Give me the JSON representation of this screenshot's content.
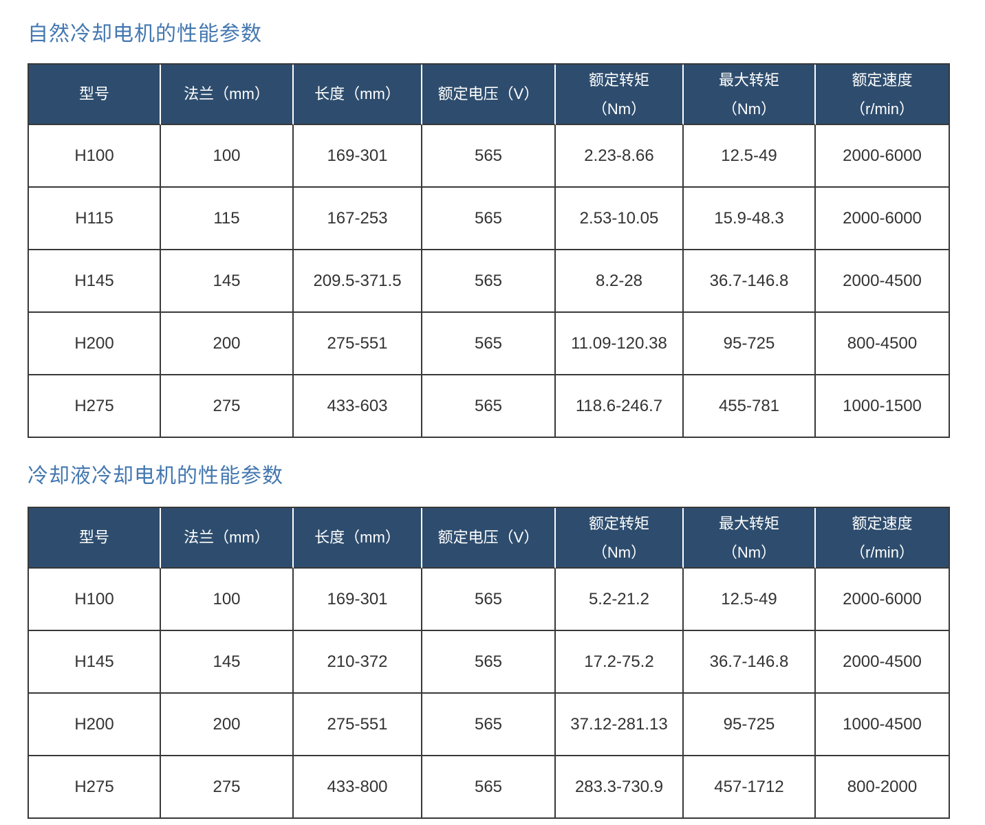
{
  "colors": {
    "title_blue": "#4478b0",
    "header_bg": "#2e4d6e",
    "header_text": "#ffffff",
    "body_text": "#333333",
    "border_dark": "#383838",
    "header_divider": "#ffffff"
  },
  "columns": [
    {
      "line1": "型号",
      "line2": ""
    },
    {
      "line1": "法兰（mm）",
      "line2": ""
    },
    {
      "line1": "长度（mm）",
      "line2": ""
    },
    {
      "line1": "额定电压（V）",
      "line2": ""
    },
    {
      "line1": "额定转矩",
      "line2": "（Nm）"
    },
    {
      "line1": "最大转矩",
      "line2": "（Nm）"
    },
    {
      "line1": "额定速度",
      "line2": "（r/min）"
    }
  ],
  "sections": [
    {
      "title": "自然冷却电机的性能参数",
      "rows": [
        [
          "H100",
          "100",
          "169-301",
          "565",
          "2.23-8.66",
          "12.5-49",
          "2000-6000"
        ],
        [
          "H115",
          "115",
          "167-253",
          "565",
          "2.53-10.05",
          "15.9-48.3",
          "2000-6000"
        ],
        [
          "H145",
          "145",
          "209.5-371.5",
          "565",
          "8.2-28",
          "36.7-146.8",
          "2000-4500"
        ],
        [
          "H200",
          "200",
          "275-551",
          "565",
          "11.09-120.38",
          "95-725",
          "800-4500"
        ],
        [
          "H275",
          "275",
          "433-603",
          "565",
          "118.6-246.7",
          "455-781",
          "1000-1500"
        ]
      ]
    },
    {
      "title": "冷却液冷却电机的性能参数",
      "rows": [
        [
          "H100",
          "100",
          "169-301",
          "565",
          "5.2-21.2",
          "12.5-49",
          "2000-6000"
        ],
        [
          "H145",
          "145",
          "210-372",
          "565",
          "17.2-75.2",
          "36.7-146.8",
          "2000-4500"
        ],
        [
          "H200",
          "200",
          "275-551",
          "565",
          "37.12-281.13",
          "95-725",
          "1000-4500"
        ],
        [
          "H275",
          "275",
          "433-800",
          "565",
          "283.3-730.9",
          "457-1712",
          "800-2000"
        ]
      ]
    }
  ]
}
